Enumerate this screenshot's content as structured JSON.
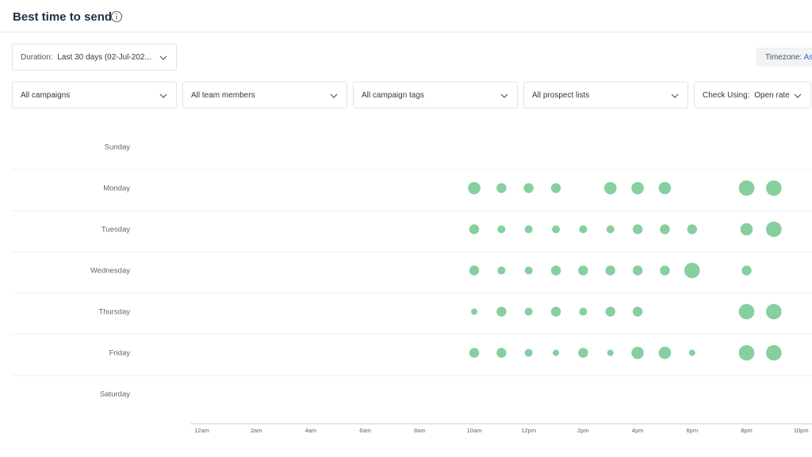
{
  "header": {
    "title": "Best time to send",
    "info_icon": "info-icon"
  },
  "filters": {
    "duration": {
      "label": "Duration:",
      "value": "Last 30 days (02-Jul-202..."
    },
    "timezone": {
      "label": "Timezone:",
      "value": "As"
    },
    "campaigns": "All campaigns",
    "team_members": "All team members",
    "campaign_tags": "All campaign tags",
    "prospect_lists": "All prospect lists",
    "check_using": {
      "label": "Check Using:",
      "value": "Open rate"
    }
  },
  "colors": {
    "bubble": "#86cf9e",
    "grid": "#eceff2",
    "axis": "#c9ced4"
  },
  "chart_data": {
    "type": "scatter",
    "y_categories": [
      "Sunday",
      "Monday",
      "Tuesday",
      "Wednesday",
      "Thursday",
      "Friday",
      "Saturday"
    ],
    "x_hours": [
      0,
      1,
      2,
      3,
      4,
      5,
      6,
      7,
      8,
      9,
      10,
      11,
      12,
      13,
      14,
      15,
      16,
      17,
      18,
      19,
      20,
      21,
      22,
      23
    ],
    "x_tick_labels": [
      {
        "hour": 0,
        "label": "12am"
      },
      {
        "hour": 2,
        "label": "2am"
      },
      {
        "hour": 4,
        "label": "4am"
      },
      {
        "hour": 6,
        "label": "6am"
      },
      {
        "hour": 8,
        "label": "8am"
      },
      {
        "hour": 10,
        "label": "10am"
      },
      {
        "hour": 12,
        "label": "12pm"
      },
      {
        "hour": 14,
        "label": "2pm"
      },
      {
        "hour": 16,
        "label": "4pm"
      },
      {
        "hour": 18,
        "label": "6pm"
      },
      {
        "hour": 20,
        "label": "8pm"
      },
      {
        "hour": 22,
        "label": "10pm"
      }
    ],
    "bubbles": [
      {
        "day": "Monday",
        "hour": 10,
        "size": 4
      },
      {
        "day": "Monday",
        "hour": 11,
        "size": 3
      },
      {
        "day": "Monday",
        "hour": 12,
        "size": 3
      },
      {
        "day": "Monday",
        "hour": 13,
        "size": 3
      },
      {
        "day": "Monday",
        "hour": 15,
        "size": 4
      },
      {
        "day": "Monday",
        "hour": 16,
        "size": 4
      },
      {
        "day": "Monday",
        "hour": 17,
        "size": 4
      },
      {
        "day": "Monday",
        "hour": 20,
        "size": 5
      },
      {
        "day": "Monday",
        "hour": 21,
        "size": 5
      },
      {
        "day": "Tuesday",
        "hour": 10,
        "size": 3
      },
      {
        "day": "Tuesday",
        "hour": 11,
        "size": 2
      },
      {
        "day": "Tuesday",
        "hour": 12,
        "size": 2
      },
      {
        "day": "Tuesday",
        "hour": 13,
        "size": 2
      },
      {
        "day": "Tuesday",
        "hour": 14,
        "size": 2
      },
      {
        "day": "Tuesday",
        "hour": 15,
        "size": 2
      },
      {
        "day": "Tuesday",
        "hour": 16,
        "size": 3
      },
      {
        "day": "Tuesday",
        "hour": 17,
        "size": 3
      },
      {
        "day": "Tuesday",
        "hour": 18,
        "size": 3
      },
      {
        "day": "Tuesday",
        "hour": 20,
        "size": 4
      },
      {
        "day": "Tuesday",
        "hour": 21,
        "size": 5
      },
      {
        "day": "Wednesday",
        "hour": 10,
        "size": 3
      },
      {
        "day": "Wednesday",
        "hour": 11,
        "size": 2
      },
      {
        "day": "Wednesday",
        "hour": 12,
        "size": 2
      },
      {
        "day": "Wednesday",
        "hour": 13,
        "size": 3
      },
      {
        "day": "Wednesday",
        "hour": 14,
        "size": 3
      },
      {
        "day": "Wednesday",
        "hour": 15,
        "size": 3
      },
      {
        "day": "Wednesday",
        "hour": 16,
        "size": 3
      },
      {
        "day": "Wednesday",
        "hour": 17,
        "size": 3
      },
      {
        "day": "Wednesday",
        "hour": 18,
        "size": 5
      },
      {
        "day": "Wednesday",
        "hour": 20,
        "size": 3
      },
      {
        "day": "Thursday",
        "hour": 10,
        "size": 1
      },
      {
        "day": "Thursday",
        "hour": 11,
        "size": 3
      },
      {
        "day": "Thursday",
        "hour": 12,
        "size": 2
      },
      {
        "day": "Thursday",
        "hour": 13,
        "size": 3
      },
      {
        "day": "Thursday",
        "hour": 14,
        "size": 2
      },
      {
        "day": "Thursday",
        "hour": 15,
        "size": 3
      },
      {
        "day": "Thursday",
        "hour": 16,
        "size": 3
      },
      {
        "day": "Thursday",
        "hour": 20,
        "size": 5
      },
      {
        "day": "Thursday",
        "hour": 21,
        "size": 5
      },
      {
        "day": "Friday",
        "hour": 10,
        "size": 3
      },
      {
        "day": "Friday",
        "hour": 11,
        "size": 3
      },
      {
        "day": "Friday",
        "hour": 12,
        "size": 2
      },
      {
        "day": "Friday",
        "hour": 13,
        "size": 1
      },
      {
        "day": "Friday",
        "hour": 14,
        "size": 3
      },
      {
        "day": "Friday",
        "hour": 15,
        "size": 1
      },
      {
        "day": "Friday",
        "hour": 16,
        "size": 4
      },
      {
        "day": "Friday",
        "hour": 17,
        "size": 4
      },
      {
        "day": "Friday",
        "hour": 18,
        "size": 1
      },
      {
        "day": "Friday",
        "hour": 20,
        "size": 5
      },
      {
        "day": "Friday",
        "hour": 21,
        "size": 5
      }
    ]
  }
}
